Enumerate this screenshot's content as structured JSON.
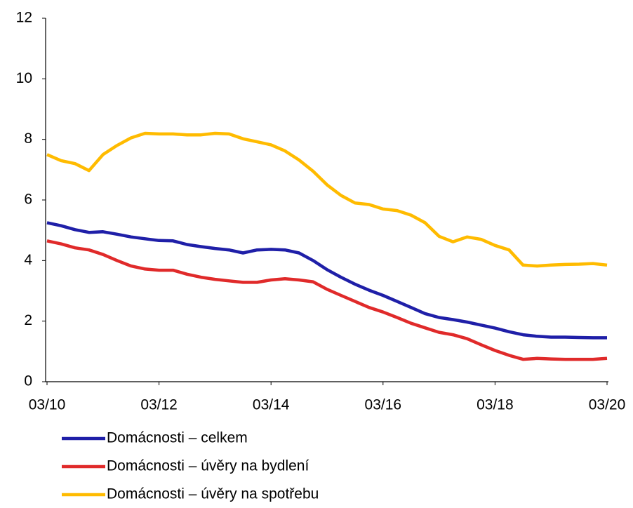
{
  "chart_data": {
    "type": "line",
    "categories": [
      "03/10",
      null,
      null,
      null,
      null,
      null,
      null,
      null,
      "03/12",
      null,
      null,
      null,
      null,
      null,
      null,
      null,
      "03/14",
      null,
      null,
      null,
      null,
      null,
      null,
      null,
      "03/16",
      null,
      null,
      null,
      null,
      null,
      null,
      null,
      "03/18",
      null,
      null,
      null,
      null,
      null,
      null,
      null,
      "03/20"
    ],
    "series": [
      {
        "name": "Domácnosti – celkem",
        "color": "#1f1fa8",
        "values": [
          5.25,
          5.15,
          5.02,
          4.93,
          4.95,
          4.87,
          4.78,
          4.72,
          4.66,
          4.65,
          4.53,
          4.46,
          4.4,
          4.35,
          4.25,
          4.35,
          4.37,
          4.35,
          4.25,
          4.0,
          3.7,
          3.45,
          3.22,
          3.02,
          2.85,
          2.65,
          2.45,
          2.25,
          2.12,
          2.05,
          1.97,
          1.87,
          1.77,
          1.65,
          1.55,
          1.5,
          1.47,
          1.47,
          1.46,
          1.45,
          1.45
        ]
      },
      {
        "name": "Domácnosti – úvěry na bydlení",
        "color": "#e02a2a",
        "values": [
          4.65,
          4.55,
          4.42,
          4.35,
          4.2,
          4.0,
          3.82,
          3.72,
          3.68,
          3.68,
          3.55,
          3.45,
          3.38,
          3.33,
          3.28,
          3.28,
          3.36,
          3.4,
          3.36,
          3.3,
          3.05,
          2.85,
          2.65,
          2.45,
          2.3,
          2.12,
          1.93,
          1.78,
          1.63,
          1.55,
          1.42,
          1.22,
          1.03,
          0.87,
          0.74,
          0.77,
          0.75,
          0.74,
          0.74,
          0.74,
          0.77
        ]
      },
      {
        "name": "Domácnosti – úvěry na spotřebu",
        "color": "#ffbb00",
        "values": [
          7.5,
          7.3,
          7.2,
          6.97,
          7.5,
          7.8,
          8.05,
          8.2,
          8.18,
          8.18,
          8.15,
          8.15,
          8.2,
          8.18,
          8.02,
          7.92,
          7.82,
          7.62,
          7.32,
          6.95,
          6.5,
          6.15,
          5.9,
          5.85,
          5.7,
          5.65,
          5.5,
          5.25,
          4.8,
          4.62,
          4.78,
          4.7,
          4.5,
          4.35,
          3.85,
          3.82,
          3.85,
          3.87,
          3.88,
          3.9,
          3.85
        ]
      }
    ],
    "ylim": [
      0,
      12
    ],
    "yticks": [
      0,
      2,
      4,
      6,
      8,
      10,
      12
    ]
  }
}
